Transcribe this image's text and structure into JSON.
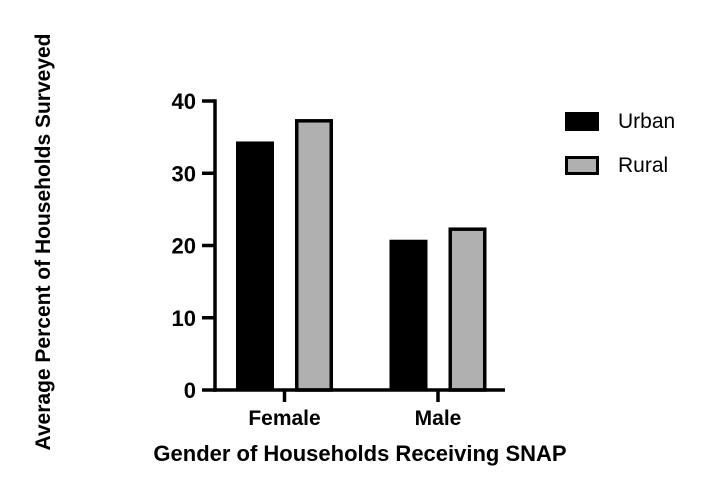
{
  "chart_data": {
    "type": "bar",
    "categories": [
      "Female",
      "Male"
    ],
    "series": [
      {
        "name": "Urban",
        "color": "#000000",
        "outlined": false,
        "values": [
          34.4,
          20.8
        ]
      },
      {
        "name": "Rural",
        "color": "#b0b0b0",
        "outlined": true,
        "values": [
          37.5,
          22.5
        ]
      }
    ],
    "xlabel": "Gender of Households Receiving SNAP",
    "ylabel": "Average Percent of Households Surveyed",
    "ylim": [
      0,
      40
    ],
    "yticks": [
      0,
      10,
      20,
      30,
      40
    ],
    "grid": false,
    "legend": {
      "position": "right",
      "entries": [
        "Urban",
        "Rural"
      ]
    },
    "axis_color": "#000000",
    "background_color": "#ffffff"
  }
}
